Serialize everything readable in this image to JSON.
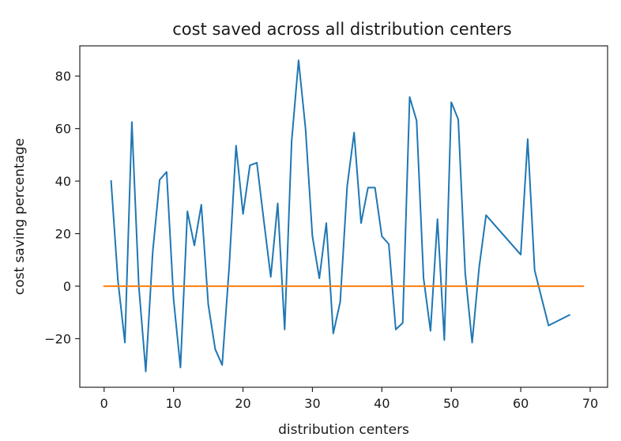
{
  "chart_data": {
    "type": "line",
    "title": "cost saved across all distribution centers",
    "xlabel": "distribution centers",
    "ylabel": "cost saving percentage",
    "xlim": [
      -3.5,
      72.5
    ],
    "ylim": [
      -38.5,
      91.5
    ],
    "xticks": [
      0,
      10,
      20,
      30,
      40,
      50,
      60,
      70
    ],
    "yticks": [
      -20,
      0,
      20,
      40,
      60,
      80
    ],
    "grid": false,
    "legend": "none",
    "series": [
      {
        "color": "#1f77b4",
        "x": [
          1,
          2,
          3,
          4,
          5,
          6,
          7,
          8,
          9,
          10,
          11,
          12,
          13,
          14,
          15,
          16,
          17,
          18,
          19,
          20,
          21,
          22,
          23,
          24,
          25,
          26,
          27,
          28,
          29,
          30,
          31,
          32,
          33,
          34,
          35,
          36,
          37,
          38,
          39,
          40,
          41,
          42,
          43,
          44,
          45,
          46,
          47,
          48,
          49,
          50,
          51,
          52,
          53,
          54,
          55,
          60,
          61,
          62,
          64,
          67
        ],
        "y": [
          40,
          2,
          -21.5,
          62.5,
          0,
          -32.5,
          13,
          40.5,
          43.5,
          -5,
          -31,
          28.5,
          15.5,
          31,
          -7,
          -24,
          -30,
          7,
          53.5,
          27.5,
          46,
          47,
          25,
          3.5,
          31.5,
          -16.5,
          55,
          86,
          60,
          19,
          3,
          24,
          -18,
          -6,
          38,
          58.5,
          24,
          37.5,
          37.5,
          19,
          16,
          -16.5,
          -14,
          72,
          63,
          3,
          -17,
          25.5,
          -20.5,
          70,
          63.5,
          5,
          -21.5,
          7,
          27,
          12,
          56,
          6,
          -15,
          -11
        ]
      },
      {
        "color": "#ff7f0e",
        "x": [
          0,
          69
        ],
        "y": [
          0,
          0
        ]
      }
    ]
  }
}
